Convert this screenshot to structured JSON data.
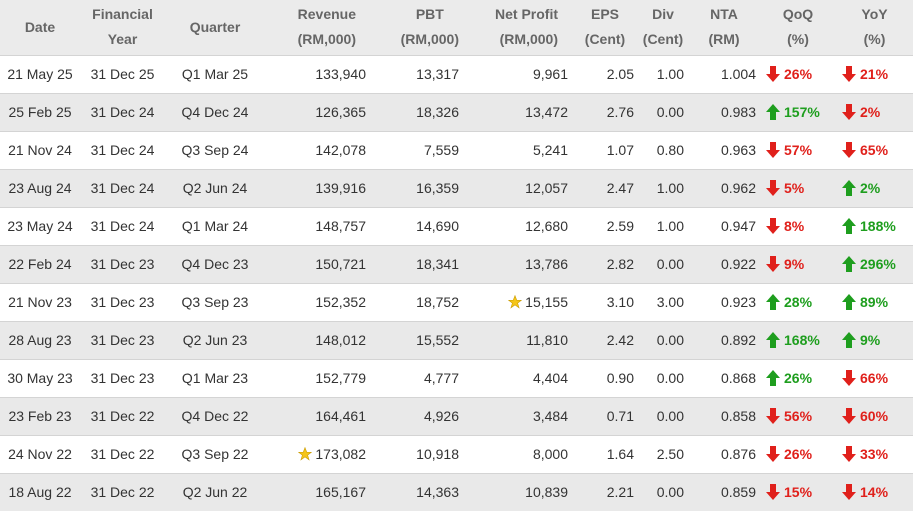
{
  "headers": {
    "date": "Date",
    "fy_1": "Financial",
    "fy_2": "Year",
    "quarter": "Quarter",
    "revenue_1": "Revenue",
    "revenue_2": "(RM,000)",
    "pbt_1": "PBT",
    "pbt_2": "(RM,000)",
    "np_1": "Net Profit",
    "np_2": "(RM,000)",
    "eps_1": "EPS",
    "eps_2": "(Cent)",
    "div_1": "Div",
    "div_2": "(Cent)",
    "nta_1": "NTA",
    "nta_2": "(RM)",
    "qoq_1": "QoQ",
    "qoq_2": "(%)",
    "yoy_1": "YoY",
    "yoy_2": "(%)"
  },
  "rows": [
    {
      "date": "21 May 25",
      "fy": "31 Dec 25",
      "quarter": "Q1 Mar 25",
      "revenue": "133,940",
      "pbt": "13,317",
      "np": "9,961",
      "eps": "2.05",
      "div": "1.00",
      "nta": "1.004",
      "qoq": "26%",
      "qoq_dir": "down",
      "yoy": "21%",
      "yoy_dir": "down",
      "star_rev": false,
      "star_np": false
    },
    {
      "date": "25 Feb 25",
      "fy": "31 Dec 24",
      "quarter": "Q4 Dec 24",
      "revenue": "126,365",
      "pbt": "18,326",
      "np": "13,472",
      "eps": "2.76",
      "div": "0.00",
      "nta": "0.983",
      "qoq": "157%",
      "qoq_dir": "up",
      "yoy": "2%",
      "yoy_dir": "down",
      "star_rev": false,
      "star_np": false
    },
    {
      "date": "21 Nov 24",
      "fy": "31 Dec 24",
      "quarter": "Q3 Sep 24",
      "revenue": "142,078",
      "pbt": "7,559",
      "np": "5,241",
      "eps": "1.07",
      "div": "0.80",
      "nta": "0.963",
      "qoq": "57%",
      "qoq_dir": "down",
      "yoy": "65%",
      "yoy_dir": "down",
      "star_rev": false,
      "star_np": false
    },
    {
      "date": "23 Aug 24",
      "fy": "31 Dec 24",
      "quarter": "Q2 Jun 24",
      "revenue": "139,916",
      "pbt": "16,359",
      "np": "12,057",
      "eps": "2.47",
      "div": "1.00",
      "nta": "0.962",
      "qoq": "5%",
      "qoq_dir": "down",
      "yoy": "2%",
      "yoy_dir": "up",
      "star_rev": false,
      "star_np": false
    },
    {
      "date": "23 May 24",
      "fy": "31 Dec 24",
      "quarter": "Q1 Mar 24",
      "revenue": "148,757",
      "pbt": "14,690",
      "np": "12,680",
      "eps": "2.59",
      "div": "1.00",
      "nta": "0.947",
      "qoq": "8%",
      "qoq_dir": "down",
      "yoy": "188%",
      "yoy_dir": "up",
      "star_rev": false,
      "star_np": false
    },
    {
      "date": "22 Feb 24",
      "fy": "31 Dec 23",
      "quarter": "Q4 Dec 23",
      "revenue": "150,721",
      "pbt": "18,341",
      "np": "13,786",
      "eps": "2.82",
      "div": "0.00",
      "nta": "0.922",
      "qoq": "9%",
      "qoq_dir": "down",
      "yoy": "296%",
      "yoy_dir": "up",
      "star_rev": false,
      "star_np": false
    },
    {
      "date": "21 Nov 23",
      "fy": "31 Dec 23",
      "quarter": "Q3 Sep 23",
      "revenue": "152,352",
      "pbt": "18,752",
      "np": "15,155",
      "eps": "3.10",
      "div": "3.00",
      "nta": "0.923",
      "qoq": "28%",
      "qoq_dir": "up",
      "yoy": "89%",
      "yoy_dir": "up",
      "star_rev": false,
      "star_np": true
    },
    {
      "date": "28 Aug 23",
      "fy": "31 Dec 23",
      "quarter": "Q2 Jun 23",
      "revenue": "148,012",
      "pbt": "15,552",
      "np": "11,810",
      "eps": "2.42",
      "div": "0.00",
      "nta": "0.892",
      "qoq": "168%",
      "qoq_dir": "up",
      "yoy": "9%",
      "yoy_dir": "up",
      "star_rev": false,
      "star_np": false
    },
    {
      "date": "30 May 23",
      "fy": "31 Dec 23",
      "quarter": "Q1 Mar 23",
      "revenue": "152,779",
      "pbt": "4,777",
      "np": "4,404",
      "eps": "0.90",
      "div": "0.00",
      "nta": "0.868",
      "qoq": "26%",
      "qoq_dir": "up",
      "yoy": "66%",
      "yoy_dir": "down",
      "star_rev": false,
      "star_np": false
    },
    {
      "date": "23 Feb 23",
      "fy": "31 Dec 22",
      "quarter": "Q4 Dec 22",
      "revenue": "164,461",
      "pbt": "4,926",
      "np": "3,484",
      "eps": "0.71",
      "div": "0.00",
      "nta": "0.858",
      "qoq": "56%",
      "qoq_dir": "down",
      "yoy": "60%",
      "yoy_dir": "down",
      "star_rev": false,
      "star_np": false
    },
    {
      "date": "24 Nov 22",
      "fy": "31 Dec 22",
      "quarter": "Q3 Sep 22",
      "revenue": "173,082",
      "pbt": "10,918",
      "np": "8,000",
      "eps": "1.64",
      "div": "2.50",
      "nta": "0.876",
      "qoq": "26%",
      "qoq_dir": "down",
      "yoy": "33%",
      "yoy_dir": "down",
      "star_rev": true,
      "star_np": false
    },
    {
      "date": "18 Aug 22",
      "fy": "31 Dec 22",
      "quarter": "Q2 Jun 22",
      "revenue": "165,167",
      "pbt": "14,363",
      "np": "10,839",
      "eps": "2.21",
      "div": "0.00",
      "nta": "0.859",
      "qoq": "15%",
      "qoq_dir": "down",
      "yoy": "14%",
      "yoy_dir": "down",
      "star_rev": false,
      "star_np": false
    }
  ],
  "colors": {
    "up": "#1e9e1e",
    "down": "#e0201b",
    "star": "#f5c518"
  }
}
